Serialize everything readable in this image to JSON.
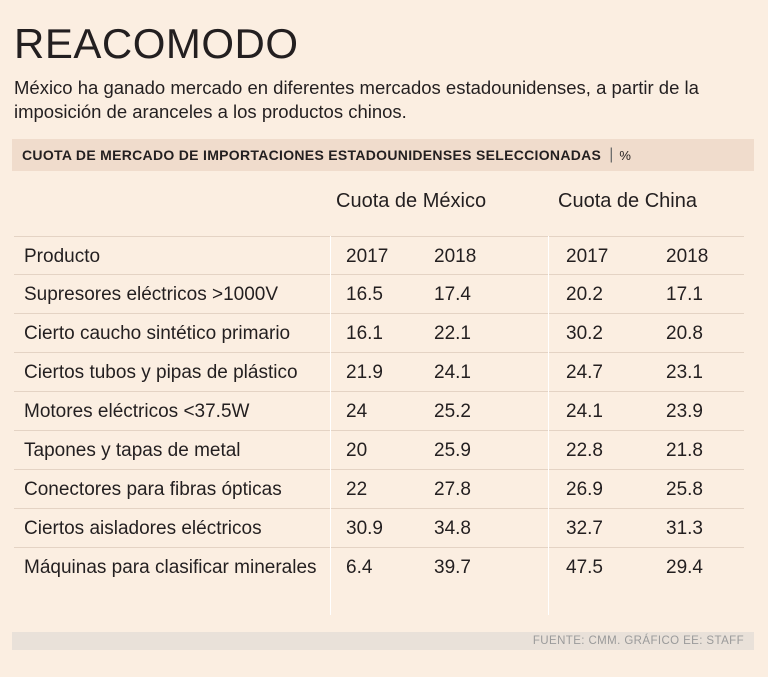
{
  "title": "REACOMODO",
  "subtitle": "México ha ganado mercado en diferentes mercados estadounidenses, a partir de la imposición de aranceles a los productos chinos.",
  "header": {
    "text": "CUOTA DE MERCADO DE IMPORTACIONES ESTADOUNIDENSES SELECCIONADAS",
    "separator": "|",
    "unit": "%"
  },
  "groups": {
    "mexico": "Cuota de México",
    "china": "Cuota de China"
  },
  "chart_data": {
    "type": "table",
    "title": "CUOTA DE MERCADO DE IMPORTACIONES ESTADOUNIDENSES SELECCIONADAS",
    "unit": "%",
    "columns": [
      "Producto",
      "2017",
      "2018",
      "2017",
      "2018"
    ],
    "rows": [
      {
        "product": "Supresores eléctricos >1000V",
        "mx2017": "16.5",
        "mx2018": "17.4",
        "cn2017": "20.2",
        "cn2018": "17.1"
      },
      {
        "product": "Cierto caucho sintético primario",
        "mx2017": "16.1",
        "mx2018": "22.1",
        "cn2017": "30.2",
        "cn2018": "20.8"
      },
      {
        "product": "Ciertos tubos y pipas de plástico",
        "mx2017": "21.9",
        "mx2018": "24.1",
        "cn2017": "24.7",
        "cn2018": "23.1"
      },
      {
        "product": "Motores eléctricos <37.5W",
        "mx2017": "24",
        "mx2018": "25.2",
        "cn2017": "24.1",
        "cn2018": "23.9"
      },
      {
        "product": "Tapones y tapas de metal",
        "mx2017": "20",
        "mx2018": "25.9",
        "cn2017": "22.8",
        "cn2018": "21.8"
      },
      {
        "product": "Conectores para fibras ópticas",
        "mx2017": "22",
        "mx2018": "27.8",
        "cn2017": "26.9",
        "cn2018": "25.8"
      },
      {
        "product": "Ciertos aisladores eléctricos",
        "mx2017": "30.9",
        "mx2018": "34.8",
        "cn2017": "32.7",
        "cn2018": "31.3"
      },
      {
        "product": "Máquinas para clasificar minerales",
        "mx2017": "6.4",
        "mx2018": "39.7",
        "cn2017": "47.5",
        "cn2018": "29.4"
      }
    ]
  },
  "footer": "FUENTE: CMM. GRÁFICO EE: STAFF"
}
